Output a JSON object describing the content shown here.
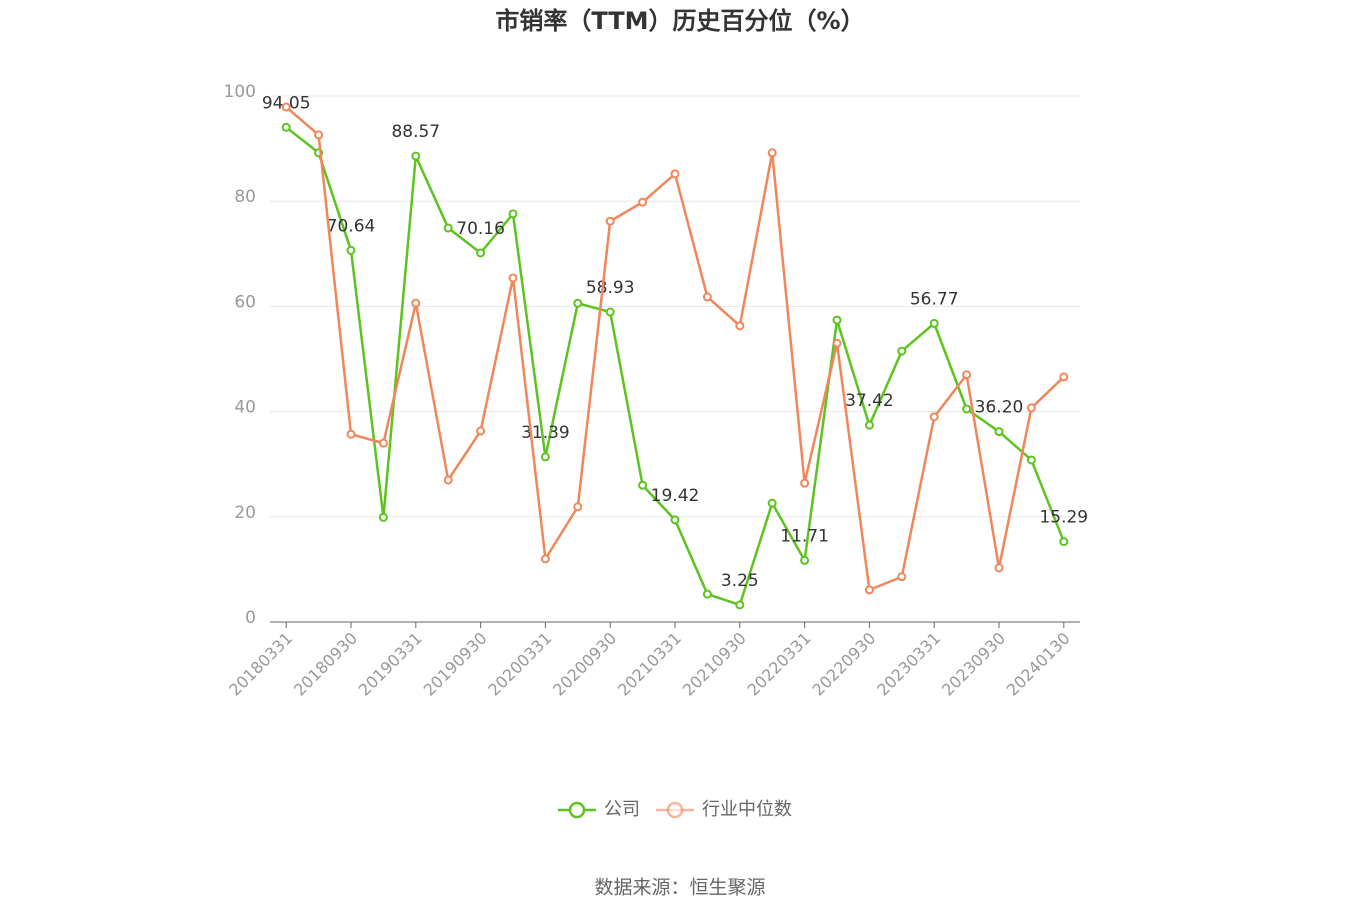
{
  "chart_data": {
    "type": "line",
    "title": "市销率（TTM）历史百分位（%）",
    "categories": [
      "20180331",
      null,
      "20180930",
      null,
      "20190331",
      null,
      "20190930",
      null,
      "20200331",
      null,
      "20200930",
      null,
      "20210331",
      null,
      "20210930",
      null,
      "20220331",
      null,
      "20220930",
      null,
      "20230331",
      null,
      "20230930",
      null,
      "20240130"
    ],
    "series": [
      {
        "name": "公司",
        "color": "#5cc31f",
        "values": [
          94.05,
          89.2,
          70.64,
          19.9,
          88.57,
          74.9,
          70.16,
          77.6,
          31.39,
          60.6,
          58.93,
          26.0,
          19.42,
          5.3,
          3.25,
          22.6,
          11.71,
          57.4,
          37.42,
          51.5,
          56.77,
          40.5,
          36.2,
          30.8,
          15.29
        ],
        "value_labels": [
          "94.05",
          null,
          "70.64",
          null,
          "88.57",
          null,
          "70.16",
          null,
          "31.39",
          null,
          "58.93",
          null,
          "19.42",
          null,
          "3.25",
          null,
          "11.71",
          null,
          "37.42",
          null,
          "56.77",
          null,
          "36.20",
          null,
          "15.29"
        ]
      },
      {
        "name": "行业中位数",
        "color": "#f0865a",
        "values": [
          97.9,
          92.6,
          35.7,
          34.0,
          60.6,
          27.0,
          36.3,
          65.4,
          12.0,
          21.9,
          76.2,
          79.8,
          85.2,
          61.8,
          56.3,
          89.2,
          26.4,
          53.0,
          6.1,
          8.6,
          39.0,
          47.0,
          10.3,
          40.7,
          46.6
        ]
      }
    ],
    "ylim": [
      0,
      100
    ],
    "yticks": [
      0,
      20,
      40,
      60,
      80,
      100
    ],
    "grid": true,
    "source": "数据来源：恒生聚源"
  }
}
